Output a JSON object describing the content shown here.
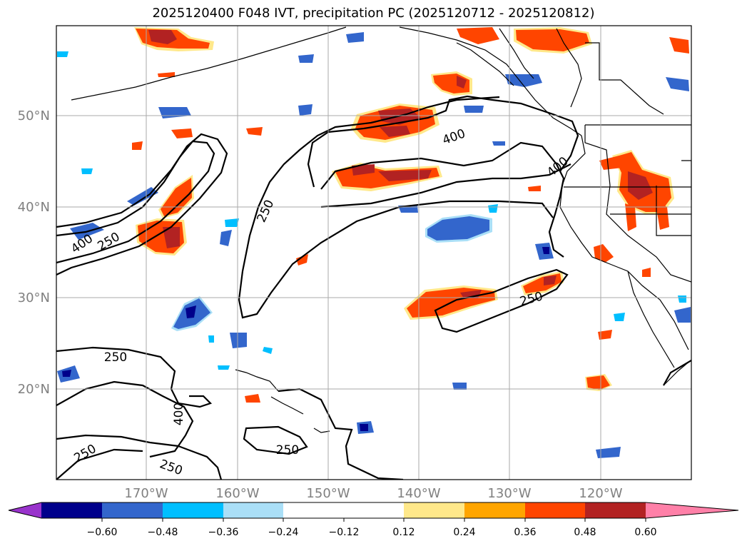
{
  "title": "2025120400 F048 IVT, precipitation PC (2025120712 - 2025120812)",
  "map": {
    "lat_labels": [
      "50°N",
      "40°N",
      "30°N",
      "20°N"
    ],
    "lon_labels": [
      "170°W",
      "160°W",
      "150°W",
      "140°W",
      "130°W",
      "120°W"
    ],
    "ivt_contour_labels": [
      "400",
      "250",
      "250",
      "400",
      "400",
      "250",
      "250",
      "400",
      "250",
      "250",
      "250"
    ]
  },
  "colorbar": {
    "tick_labels": [
      "−0.60",
      "−0.48",
      "−0.36",
      "−0.24",
      "−0.12",
      "0.12",
      "0.24",
      "0.36",
      "0.48",
      "0.60"
    ],
    "colors": [
      "#9933cc",
      "#00008b",
      "#3366cc",
      "#00bfff",
      "#aadff7",
      "#ffffff",
      "#ffe88a",
      "#ffa500",
      "#ff4500",
      "#b22222",
      "#ff80a8"
    ]
  }
}
